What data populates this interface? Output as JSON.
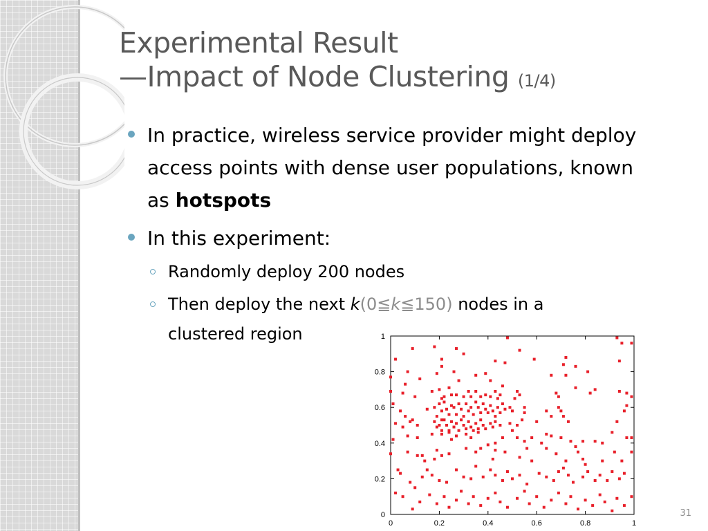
{
  "title": {
    "line1": "Experimental Result",
    "line2": "—Impact of Node Clustering",
    "sub": "(1/4)"
  },
  "bullets": {
    "b1": {
      "text": "In practice, wireless service provider might deploy access points with dense user populations, known as ",
      "bold": "hotspots"
    },
    "b2": {
      "text": "In this experiment:"
    },
    "s1": {
      "text": "Randomly deploy 200 nodes"
    },
    "s2": {
      "pre": "Then deploy the next ",
      "k": "k",
      "paren_open": "(0≦",
      "k2": "k",
      "paren_close": "≦150)",
      "post": " nodes in a clustered region"
    }
  },
  "page_number": "31",
  "colors": {
    "title": "#595959",
    "bullet": "#6aa5bf",
    "points": "#e8202a",
    "band": "#d9d9d9"
  },
  "chart_data": {
    "type": "scatter",
    "xlim": [
      0,
      1
    ],
    "ylim": [
      0,
      1
    ],
    "x_ticks": [
      "0",
      "0.2",
      "0.4",
      "0.6",
      "0.8",
      "1"
    ],
    "y_ticks": [
      "0",
      "0.2",
      "0.4",
      "0.6",
      "0.8",
      "1"
    ],
    "grid": false,
    "points": [
      [
        0.09,
        0.93
      ],
      [
        0.18,
        0.94
      ],
      [
        0.27,
        0.93
      ],
      [
        0.3,
        0.9
      ],
      [
        0.48,
        0.99
      ],
      [
        0.53,
        0.92
      ],
      [
        0.59,
        0.87
      ],
      [
        0.72,
        0.88
      ],
      [
        0.93,
        0.99
      ],
      [
        0.95,
        0.96
      ],
      [
        0.99,
        0.96
      ],
      [
        0.02,
        0.87
      ],
      [
        0.07,
        0.8
      ],
      [
        0.21,
        0.87
      ],
      [
        0.21,
        0.83
      ],
      [
        0.43,
        0.86
      ],
      [
        0.47,
        0.85
      ],
      [
        0.71,
        0.84
      ],
      [
        0.72,
        0.78
      ],
      [
        0.76,
        0.83
      ],
      [
        0.81,
        0.8
      ],
      [
        0.94,
        0.86
      ],
      [
        0.0,
        0.77
      ],
      [
        0.06,
        0.73
      ],
      [
        0.12,
        0.76
      ],
      [
        0.19,
        0.79
      ],
      [
        0.26,
        0.8
      ],
      [
        0.28,
        0.75
      ],
      [
        0.35,
        0.78
      ],
      [
        0.39,
        0.79
      ],
      [
        0.41,
        0.75
      ],
      [
        0.46,
        0.72
      ],
      [
        0.66,
        0.78
      ],
      [
        0.76,
        0.71
      ],
      [
        0.82,
        0.68
      ],
      [
        0.84,
        0.7
      ],
      [
        0.94,
        0.69
      ],
      [
        0.97,
        0.68
      ],
      [
        0.0,
        0.69
      ],
      [
        0.01,
        0.62
      ],
      [
        0.05,
        0.68
      ],
      [
        0.1,
        0.66
      ],
      [
        0.17,
        0.69
      ],
      [
        0.2,
        0.7
      ],
      [
        0.21,
        0.65
      ],
      [
        0.22,
        0.66
      ],
      [
        0.24,
        0.71
      ],
      [
        0.25,
        0.67
      ],
      [
        0.27,
        0.67
      ],
      [
        0.3,
        0.66
      ],
      [
        0.32,
        0.69
      ],
      [
        0.33,
        0.66
      ],
      [
        0.35,
        0.69
      ],
      [
        0.37,
        0.66
      ],
      [
        0.39,
        0.67
      ],
      [
        0.41,
        0.66
      ],
      [
        0.43,
        0.69
      ],
      [
        0.44,
        0.65
      ],
      [
        0.45,
        0.67
      ],
      [
        0.51,
        0.65
      ],
      [
        0.52,
        0.69
      ],
      [
        0.53,
        0.67
      ],
      [
        0.68,
        0.68
      ],
      [
        0.69,
        0.66
      ],
      [
        0.97,
        0.61
      ],
      [
        0.99,
        0.66
      ],
      [
        0.04,
        0.58
      ],
      [
        0.06,
        0.55
      ],
      [
        0.09,
        0.53
      ],
      [
        0.15,
        0.59
      ],
      [
        0.18,
        0.6
      ],
      [
        0.19,
        0.55
      ],
      [
        0.2,
        0.62
      ],
      [
        0.21,
        0.58
      ],
      [
        0.21,
        0.53
      ],
      [
        0.22,
        0.63
      ],
      [
        0.23,
        0.59
      ],
      [
        0.24,
        0.56
      ],
      [
        0.25,
        0.61
      ],
      [
        0.26,
        0.6
      ],
      [
        0.27,
        0.56
      ],
      [
        0.28,
        0.62
      ],
      [
        0.29,
        0.59
      ],
      [
        0.3,
        0.55
      ],
      [
        0.31,
        0.62
      ],
      [
        0.32,
        0.58
      ],
      [
        0.33,
        0.6
      ],
      [
        0.34,
        0.56
      ],
      [
        0.35,
        0.63
      ],
      [
        0.36,
        0.6
      ],
      [
        0.37,
        0.57
      ],
      [
        0.38,
        0.62
      ],
      [
        0.39,
        0.59
      ],
      [
        0.4,
        0.57
      ],
      [
        0.41,
        0.61
      ],
      [
        0.42,
        0.58
      ],
      [
        0.43,
        0.55
      ],
      [
        0.44,
        0.6
      ],
      [
        0.45,
        0.57
      ],
      [
        0.46,
        0.62
      ],
      [
        0.47,
        0.59
      ],
      [
        0.49,
        0.6
      ],
      [
        0.5,
        0.58
      ],
      [
        0.55,
        0.6
      ],
      [
        0.55,
        0.57
      ],
      [
        0.64,
        0.58
      ],
      [
        0.66,
        0.55
      ],
      [
        0.69,
        0.6
      ],
      [
        0.7,
        0.58
      ],
      [
        0.71,
        0.55
      ],
      [
        0.93,
        0.52
      ],
      [
        0.96,
        0.58
      ],
      [
        0.02,
        0.51
      ],
      [
        0.05,
        0.49
      ],
      [
        0.08,
        0.52
      ],
      [
        0.11,
        0.5
      ],
      [
        0.18,
        0.52
      ],
      [
        0.19,
        0.49
      ],
      [
        0.2,
        0.5
      ],
      [
        0.21,
        0.47
      ],
      [
        0.22,
        0.53
      ],
      [
        0.23,
        0.5
      ],
      [
        0.24,
        0.47
      ],
      [
        0.25,
        0.52
      ],
      [
        0.26,
        0.49
      ],
      [
        0.27,
        0.51
      ],
      [
        0.28,
        0.47
      ],
      [
        0.29,
        0.53
      ],
      [
        0.3,
        0.5
      ],
      [
        0.31,
        0.48
      ],
      [
        0.32,
        0.52
      ],
      [
        0.33,
        0.49
      ],
      [
        0.34,
        0.47
      ],
      [
        0.35,
        0.51
      ],
      [
        0.36,
        0.48
      ],
      [
        0.37,
        0.53
      ],
      [
        0.38,
        0.5
      ],
      [
        0.39,
        0.48
      ],
      [
        0.41,
        0.51
      ],
      [
        0.42,
        0.49
      ],
      [
        0.43,
        0.52
      ],
      [
        0.45,
        0.5
      ],
      [
        0.49,
        0.51
      ],
      [
        0.5,
        0.47
      ],
      [
        0.52,
        0.5
      ],
      [
        0.54,
        0.53
      ],
      [
        0.6,
        0.52
      ],
      [
        0.73,
        0.52
      ],
      [
        0.91,
        0.46
      ],
      [
        0.01,
        0.42
      ],
      [
        0.0,
        0.34
      ],
      [
        0.07,
        0.44
      ],
      [
        0.11,
        0.43
      ],
      [
        0.17,
        0.45
      ],
      [
        0.21,
        0.45
      ],
      [
        0.24,
        0.46
      ],
      [
        0.25,
        0.42
      ],
      [
        0.27,
        0.44
      ],
      [
        0.31,
        0.45
      ],
      [
        0.33,
        0.43
      ],
      [
        0.36,
        0.46
      ],
      [
        0.43,
        0.4
      ],
      [
        0.46,
        0.43
      ],
      [
        0.52,
        0.43
      ],
      [
        0.55,
        0.41
      ],
      [
        0.58,
        0.43
      ],
      [
        0.62,
        0.4
      ],
      [
        0.64,
        0.45
      ],
      [
        0.66,
        0.44
      ],
      [
        0.7,
        0.43
      ],
      [
        0.74,
        0.41
      ],
      [
        0.79,
        0.41
      ],
      [
        0.84,
        0.41
      ],
      [
        0.87,
        0.4
      ],
      [
        0.97,
        0.43
      ],
      [
        0.99,
        0.43
      ],
      [
        0.03,
        0.25
      ],
      [
        0.07,
        0.35
      ],
      [
        0.11,
        0.33
      ],
      [
        0.13,
        0.33
      ],
      [
        0.14,
        0.3
      ],
      [
        0.18,
        0.31
      ],
      [
        0.19,
        0.36
      ],
      [
        0.21,
        0.33
      ],
      [
        0.24,
        0.34
      ],
      [
        0.31,
        0.37
      ],
      [
        0.35,
        0.35
      ],
      [
        0.37,
        0.37
      ],
      [
        0.4,
        0.39
      ],
      [
        0.42,
        0.31
      ],
      [
        0.43,
        0.36
      ],
      [
        0.47,
        0.35
      ],
      [
        0.53,
        0.32
      ],
      [
        0.56,
        0.37
      ],
      [
        0.58,
        0.3
      ],
      [
        0.64,
        0.37
      ],
      [
        0.68,
        0.34
      ],
      [
        0.72,
        0.3
      ],
      [
        0.76,
        0.38
      ],
      [
        0.77,
        0.35
      ],
      [
        0.79,
        0.31
      ],
      [
        0.8,
        0.28
      ],
      [
        0.87,
        0.3
      ],
      [
        0.92,
        0.35
      ],
      [
        0.95,
        0.3
      ],
      [
        0.99,
        0.35
      ],
      [
        0.04,
        0.23
      ],
      [
        0.08,
        0.18
      ],
      [
        0.1,
        0.15
      ],
      [
        0.13,
        0.21
      ],
      [
        0.15,
        0.25
      ],
      [
        0.17,
        0.22
      ],
      [
        0.2,
        0.19
      ],
      [
        0.23,
        0.18
      ],
      [
        0.27,
        0.25
      ],
      [
        0.3,
        0.21
      ],
      [
        0.33,
        0.2
      ],
      [
        0.35,
        0.27
      ],
      [
        0.38,
        0.21
      ],
      [
        0.41,
        0.25
      ],
      [
        0.43,
        0.22
      ],
      [
        0.46,
        0.19
      ],
      [
        0.48,
        0.24
      ],
      [
        0.5,
        0.2
      ],
      [
        0.53,
        0.22
      ],
      [
        0.56,
        0.17
      ],
      [
        0.61,
        0.23
      ],
      [
        0.64,
        0.21
      ],
      [
        0.67,
        0.19
      ],
      [
        0.69,
        0.24
      ],
      [
        0.71,
        0.26
      ],
      [
        0.73,
        0.22
      ],
      [
        0.75,
        0.18
      ],
      [
        0.79,
        0.21
      ],
      [
        0.81,
        0.24
      ],
      [
        0.84,
        0.19
      ],
      [
        0.86,
        0.22
      ],
      [
        0.89,
        0.19
      ],
      [
        0.91,
        0.24
      ],
      [
        0.94,
        0.2
      ],
      [
        0.96,
        0.23
      ],
      [
        0.02,
        0.12
      ],
      [
        0.05,
        0.1
      ],
      [
        0.09,
        0.03
      ],
      [
        0.12,
        0.07
      ],
      [
        0.16,
        0.11
      ],
      [
        0.19,
        0.06
      ],
      [
        0.22,
        0.1
      ],
      [
        0.24,
        0.04
      ],
      [
        0.27,
        0.08
      ],
      [
        0.29,
        0.13
      ],
      [
        0.32,
        0.06
      ],
      [
        0.34,
        0.1
      ],
      [
        0.37,
        0.05
      ],
      [
        0.4,
        0.09
      ],
      [
        0.43,
        0.12
      ],
      [
        0.45,
        0.07
      ],
      [
        0.48,
        0.04
      ],
      [
        0.52,
        0.09
      ],
      [
        0.55,
        0.13
      ],
      [
        0.57,
        0.06
      ],
      [
        0.6,
        0.1
      ],
      [
        0.63,
        0.04
      ],
      [
        0.66,
        0.08
      ],
      [
        0.69,
        0.12
      ],
      [
        0.72,
        0.06
      ],
      [
        0.74,
        0.1
      ],
      [
        0.77,
        0.03
      ],
      [
        0.8,
        0.08
      ],
      [
        0.83,
        0.05
      ],
      [
        0.86,
        0.11
      ],
      [
        0.88,
        0.07
      ],
      [
        0.91,
        0.02
      ],
      [
        0.93,
        0.09
      ],
      [
        0.96,
        0.05
      ],
      [
        0.99,
        0.1
      ]
    ]
  }
}
